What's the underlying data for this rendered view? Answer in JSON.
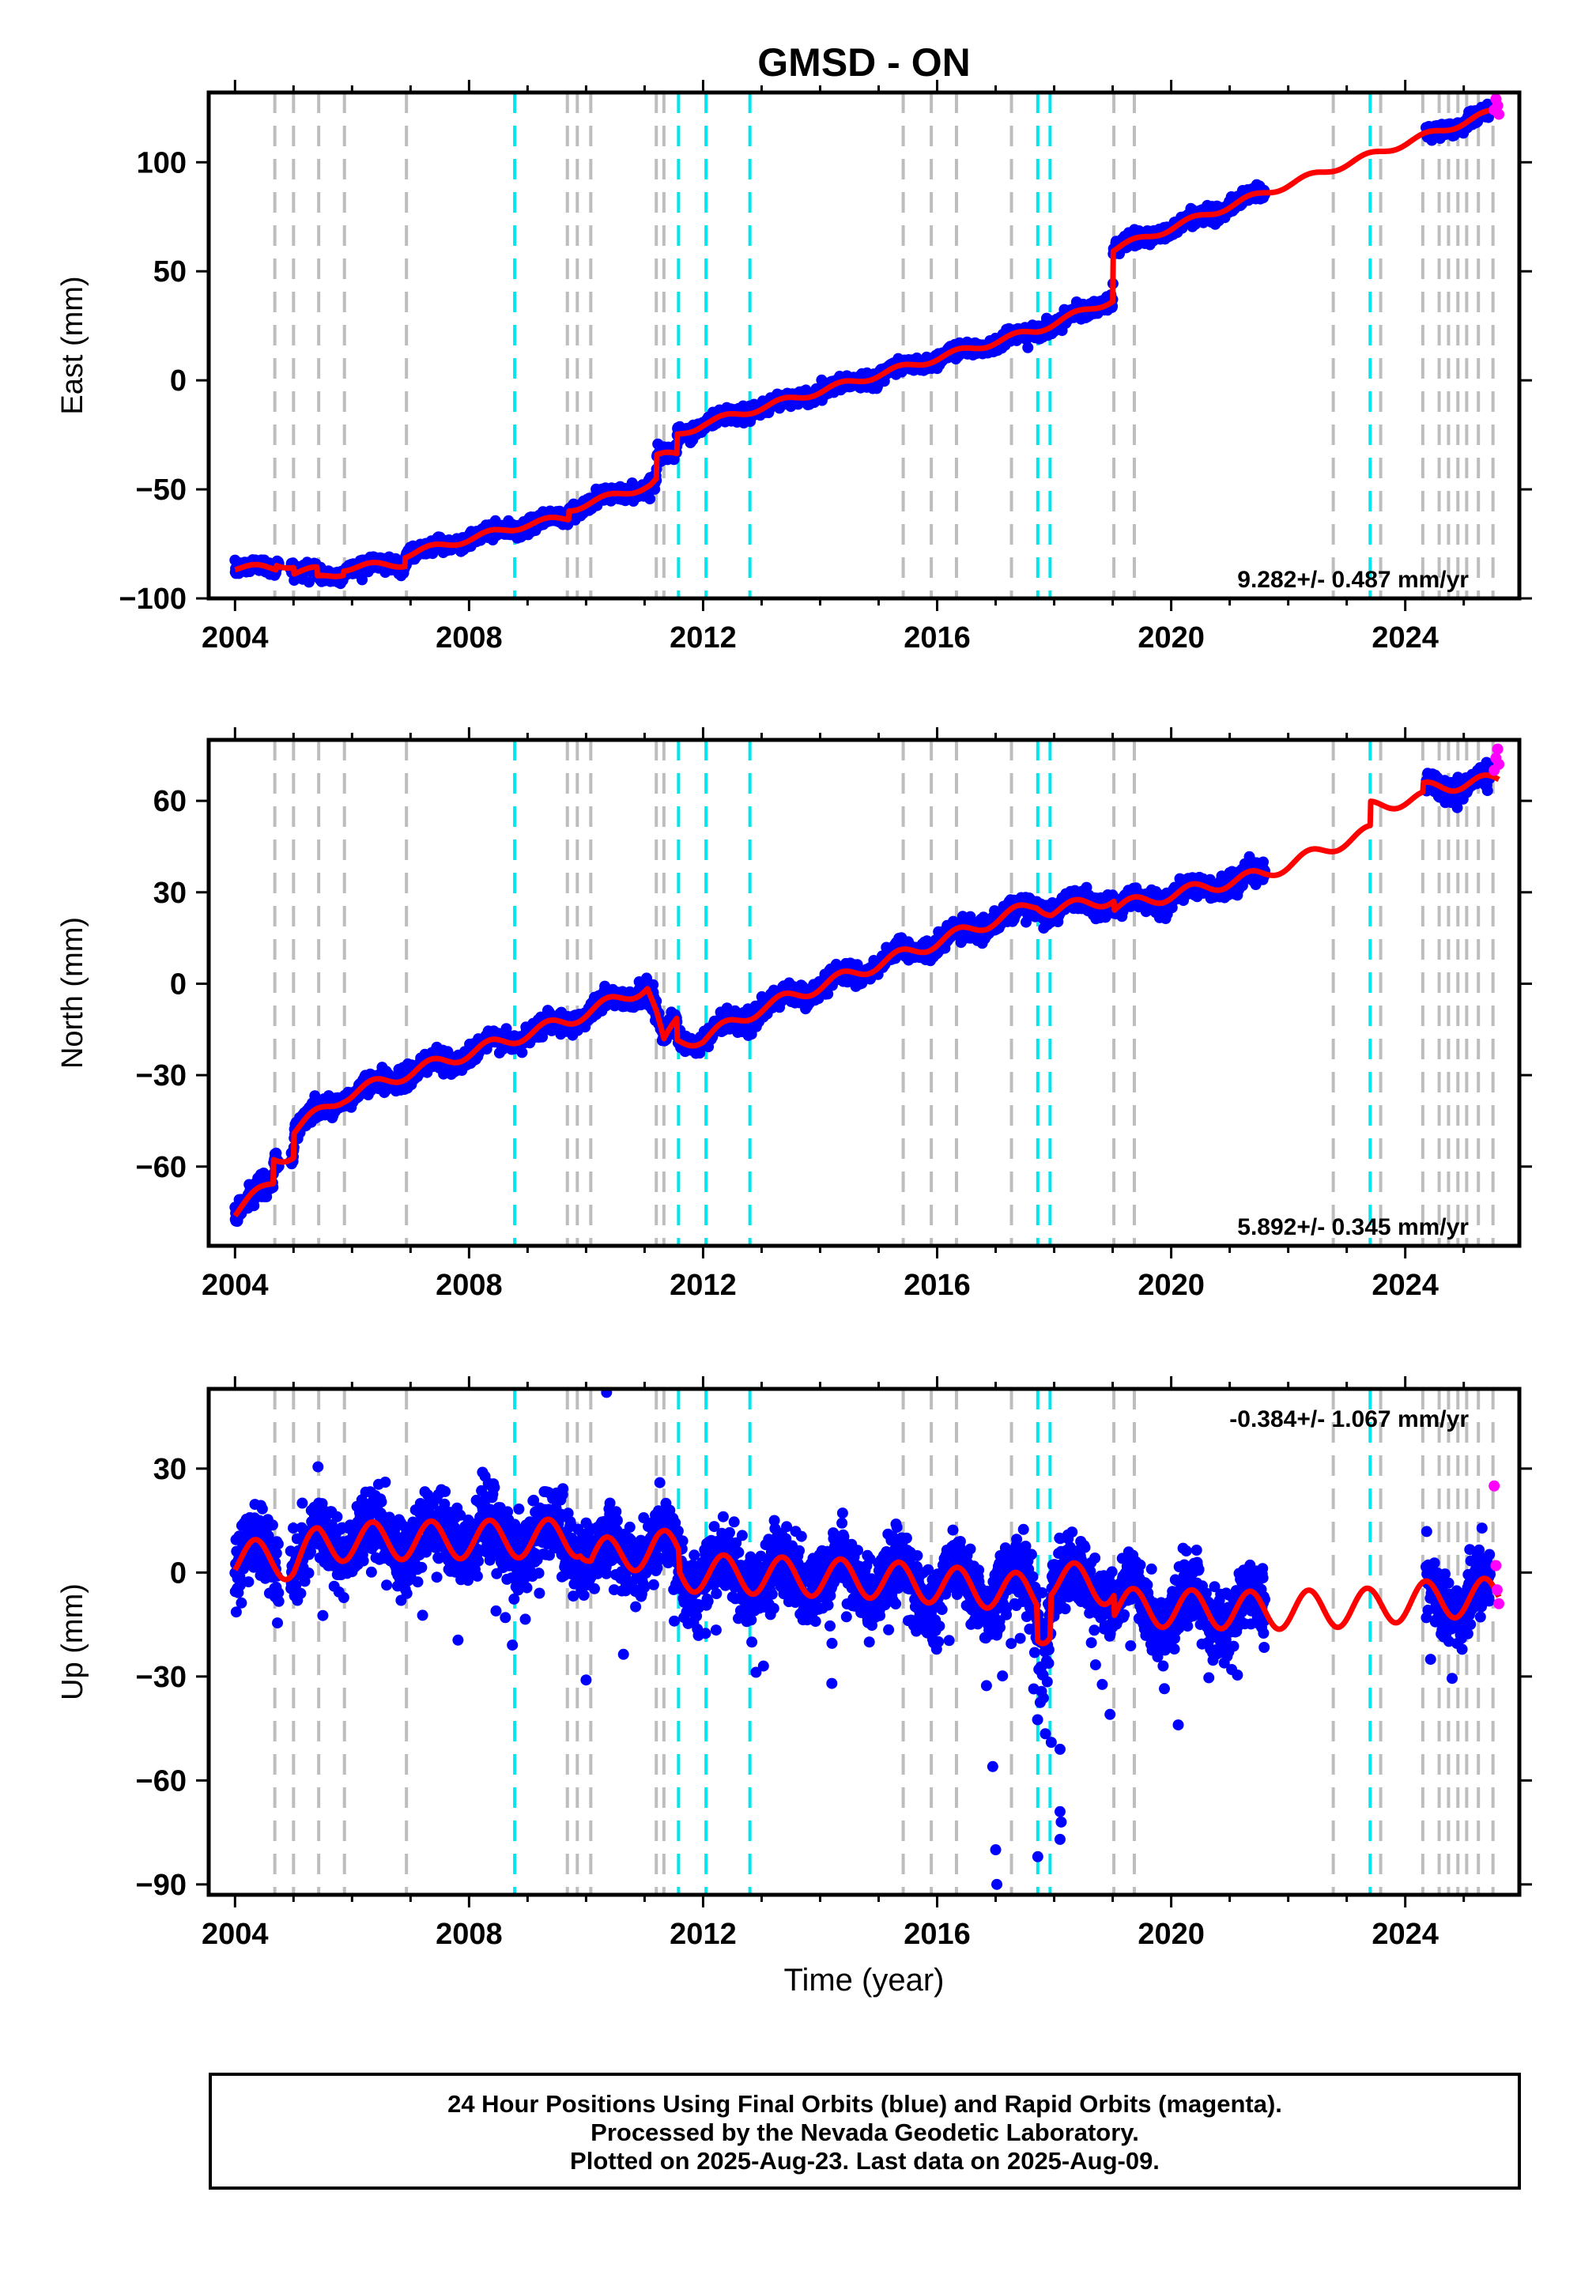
{
  "title": "GMSD - ON",
  "xlabel": "Time (year)",
  "caption": {
    "line1": "24 Hour Positions Using Final Orbits (blue) and Rapid Orbits (magenta).",
    "line2": "Processed by the Nevada Geodetic Laboratory.",
    "line3": "Plotted on 2025-Aug-23. Last data on 2025-Aug-09."
  },
  "colors": {
    "final": "#0000ff",
    "rapid": "#ff00ff",
    "model": "#ff0000",
    "equip_change": "#bdbdbd",
    "earthquake": "#00e5ee"
  },
  "xticks": [
    2004,
    2008,
    2012,
    2016,
    2020,
    2024
  ],
  "event_lines": {
    "gray": [
      2004.68,
      2005.0,
      2005.43,
      2005.87,
      2006.93,
      2009.68,
      2009.85,
      2010.08,
      2011.2,
      2011.33,
      2015.42,
      2015.9,
      2016.33,
      2017.27,
      2019.02,
      2019.37,
      2022.77,
      2023.58,
      2024.3,
      2024.58,
      2024.74,
      2024.9,
      2025.05,
      2025.25,
      2025.5
    ],
    "cyan": [
      2008.78,
      2011.58,
      2012.05,
      2012.8,
      2017.72,
      2017.93,
      2023.4
    ]
  },
  "chart_data": [
    {
      "type": "scatter",
      "panel": "east",
      "ylabel": "East (mm)",
      "yticks": [
        -100,
        -50,
        0,
        50,
        100
      ],
      "xlim": [
        2003.55,
        2025.95
      ],
      "ylim": [
        -100,
        132
      ],
      "rate": "9.282+/- 0.487 mm/yr",
      "series": [
        {
          "name": "Final Orbits (blue)",
          "x_range": [
            2004.0,
            2025.45
          ],
          "note": "daily positions"
        },
        {
          "name": "Rapid Orbits (magenta)",
          "x": [
            2025.52,
            2025.55,
            2025.58,
            2025.6
          ],
          "y": [
            124,
            129,
            126,
            122
          ]
        }
      ],
      "model": {
        "trend_knots": [
          [
            2004.0,
            -86
          ],
          [
            2004.7,
            -86
          ],
          [
            2004.71,
            -84
          ],
          [
            2005.0,
            -85
          ],
          [
            2005.01,
            -88
          ],
          [
            2005.4,
            -87
          ],
          [
            2005.41,
            -91
          ],
          [
            2005.85,
            -88
          ],
          [
            2005.86,
            -86
          ],
          [
            2006.9,
            -84
          ],
          [
            2006.91,
            -80
          ],
          [
            2009.0,
            -66
          ],
          [
            2009.7,
            -63
          ],
          [
            2009.71,
            -59
          ],
          [
            2011.1,
            -48
          ],
          [
            2011.2,
            -46
          ],
          [
            2011.21,
            -35
          ],
          [
            2011.55,
            -34
          ],
          [
            2011.56,
            -25
          ],
          [
            2012.0,
            -20
          ],
          [
            2017.7,
            23
          ],
          [
            2019.0,
            37
          ],
          [
            2019.01,
            60
          ],
          [
            2021.6,
            86
          ],
          [
            2025.6,
            124
          ]
        ],
        "seasonal_amp": 1.5,
        "modeled_gaps": [
          [
            2021.6,
            2024.35
          ]
        ]
      }
    },
    {
      "type": "scatter",
      "panel": "north",
      "ylabel": "North (mm)",
      "yticks": [
        -60,
        -30,
        0,
        30,
        60
      ],
      "xlim": [
        2003.55,
        2025.95
      ],
      "ylim": [
        -86,
        80
      ],
      "rate": "5.892+/- 0.345 mm/yr",
      "series": [
        {
          "name": "Final Orbits (blue)",
          "x_range": [
            2004.0,
            2025.45
          ],
          "note": "daily positions"
        },
        {
          "name": "Rapid Orbits (magenta)",
          "x": [
            2025.52,
            2025.55,
            2025.58,
            2025.6
          ],
          "y": [
            70,
            74,
            77,
            72
          ]
        }
      ],
      "model": {
        "trend_knots": [
          [
            2004.0,
            -75
          ],
          [
            2004.65,
            -65
          ],
          [
            2004.66,
            -57
          ],
          [
            2005.0,
            -56
          ],
          [
            2005.01,
            -48
          ],
          [
            2005.85,
            -37
          ],
          [
            2007.0,
            -29
          ],
          [
            2009.7,
            -12
          ],
          [
            2011.05,
            -1
          ],
          [
            2011.2,
            -10
          ],
          [
            2011.33,
            -20
          ],
          [
            2011.55,
            -12
          ],
          [
            2011.56,
            -19
          ],
          [
            2012.0,
            -18
          ],
          [
            2013.0,
            -8
          ],
          [
            2017.7,
            26
          ],
          [
            2017.95,
            24
          ],
          [
            2019.02,
            28
          ],
          [
            2019.03,
            25
          ],
          [
            2021.6,
            36
          ],
          [
            2023.4,
            50
          ],
          [
            2023.41,
            58
          ],
          [
            2024.3,
            61
          ],
          [
            2024.31,
            64
          ],
          [
            2025.6,
            67
          ]
        ],
        "seasonal_amp": 2.0,
        "modeled_gaps": [
          [
            2021.6,
            2024.35
          ]
        ]
      }
    },
    {
      "type": "scatter",
      "panel": "up",
      "ylabel": "Up (mm)",
      "yticks": [
        -90,
        -60,
        -30,
        0,
        30
      ],
      "xlim": [
        2003.55,
        2025.95
      ],
      "ylim": [
        -93,
        53
      ],
      "rate": "-0.384+/- 1.067 mm/yr",
      "series": [
        {
          "name": "Final Orbits (blue)",
          "x_range": [
            2004.0,
            2025.45
          ],
          "note": "daily positions, outliers down to about -90 mm near 2017"
        },
        {
          "name": "Rapid Orbits (magenta)",
          "x": [
            2025.52,
            2025.55,
            2025.57,
            2025.6
          ],
          "y": [
            25,
            2,
            -5,
            -9
          ]
        }
      ],
      "model": {
        "trend_knots": [
          [
            2004.0,
            4
          ],
          [
            2004.7,
            4
          ],
          [
            2005.0,
            3
          ],
          [
            2005.43,
            8
          ],
          [
            2006.0,
            9
          ],
          [
            2009.9,
            10
          ],
          [
            2010.08,
            4
          ],
          [
            2011.2,
            7
          ],
          [
            2011.58,
            6
          ],
          [
            2011.6,
            0
          ],
          [
            2015.0,
            -2
          ],
          [
            2017.7,
            -6
          ],
          [
            2017.72,
            -16
          ],
          [
            2017.93,
            -14
          ],
          [
            2017.95,
            -2
          ],
          [
            2019.02,
            -4
          ],
          [
            2019.03,
            -10
          ],
          [
            2021.6,
            -11
          ],
          [
            2023.4,
            -10
          ],
          [
            2024.3,
            -8
          ],
          [
            2025.6,
            -7
          ]
        ],
        "seasonal_amp": 5.5,
        "modeled_gaps": [
          [
            2021.6,
            2024.35
          ]
        ]
      }
    }
  ]
}
